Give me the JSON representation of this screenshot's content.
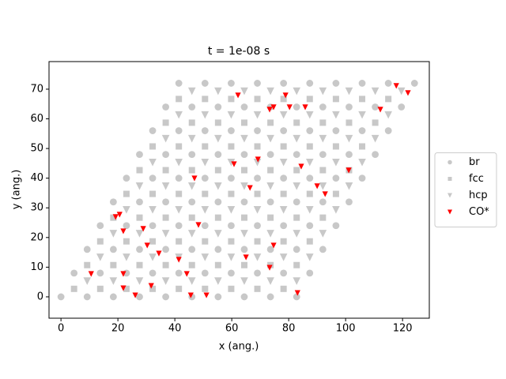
{
  "chart_data": {
    "type": "scatter",
    "title": "t = 1e-08 s",
    "xlabel": "x (ang.)",
    "ylabel": "y (ang.)",
    "xlim": [
      -4.2,
      129.4
    ],
    "ylim": [
      -7.2,
      79.3
    ],
    "xticks": [
      0,
      20,
      40,
      60,
      80,
      100,
      120
    ],
    "yticks": [
      0,
      10,
      20,
      30,
      40,
      50,
      60,
      70
    ],
    "legend": "center right",
    "series": [
      {
        "name": "br",
        "color": "#c8c8c8",
        "marker": "o",
        "x": [
          0,
          9.2,
          18.4,
          27.6,
          36.8,
          46,
          55.2,
          64.4,
          73.6,
          82.8,
          4.6,
          13.8,
          23,
          32.2,
          41.4,
          50.6,
          59.8,
          69,
          78.2,
          87.4,
          9.2,
          18.4,
          27.6,
          36.8,
          46,
          55.2,
          64.4,
          73.6,
          82.8,
          92,
          13.8,
          23,
          32.2,
          41.4,
          50.6,
          59.8,
          69,
          78.2,
          87.4,
          96.6,
          18.4,
          27.6,
          36.8,
          46,
          55.2,
          64.4,
          73.6,
          82.8,
          92,
          101.2,
          23,
          32.2,
          41.4,
          50.6,
          59.8,
          69,
          78.2,
          87.4,
          96.6,
          105.8,
          27.6,
          36.8,
          46,
          55.2,
          64.4,
          73.6,
          82.8,
          92,
          101.2,
          110.4,
          32.2,
          41.4,
          50.6,
          59.8,
          69,
          78.2,
          87.4,
          96.6,
          105.8,
          115,
          36.8,
          46,
          55.2,
          64.4,
          73.6,
          82.8,
          92,
          101.2,
          110.4,
          119.6,
          41.4,
          50.6,
          59.8,
          69,
          78.2,
          87.4,
          96.6,
          105.8,
          115,
          124.2
        ],
        "y": [
          0,
          0,
          0,
          0,
          0,
          0,
          0,
          0,
          0,
          0,
          8,
          8,
          8,
          8,
          8,
          8,
          8,
          8,
          8,
          8,
          16,
          16,
          16,
          16,
          16,
          16,
          16,
          16,
          16,
          16,
          24,
          24,
          24,
          24,
          24,
          24,
          24,
          24,
          24,
          24,
          32,
          32,
          32,
          32,
          32,
          32,
          32,
          32,
          32,
          32,
          40,
          40,
          40,
          40,
          40,
          40,
          40,
          40,
          40,
          40,
          48,
          48,
          48,
          48,
          48,
          48,
          48,
          48,
          48,
          48,
          56,
          56,
          56,
          56,
          56,
          56,
          56,
          56,
          56,
          56,
          64,
          64,
          64,
          64,
          64,
          64,
          64,
          64,
          64,
          64,
          72,
          72,
          72,
          72,
          72,
          72,
          72,
          72,
          72,
          72
        ]
      },
      {
        "name": "fcc",
        "color": "#c8c8c8",
        "marker": "s",
        "x": [
          4.6,
          13.8,
          23,
          32.2,
          41.4,
          50.6,
          59.8,
          69,
          78.2,
          9.2,
          18.4,
          27.6,
          36.8,
          46,
          55.2,
          64.4,
          73.6,
          82.8,
          13.8,
          23,
          32.2,
          41.4,
          50.6,
          59.8,
          69,
          78.2,
          87.4,
          18.4,
          27.6,
          36.8,
          46,
          55.2,
          64.4,
          73.6,
          82.8,
          92,
          23,
          32.2,
          41.4,
          50.6,
          59.8,
          69,
          78.2,
          87.4,
          96.6,
          27.6,
          36.8,
          46,
          55.2,
          64.4,
          73.6,
          82.8,
          92,
          101.2,
          32.2,
          41.4,
          50.6,
          59.8,
          69,
          78.2,
          87.4,
          96.6,
          105.8,
          36.8,
          46,
          55.2,
          64.4,
          73.6,
          82.8,
          92,
          101.2,
          110.4,
          41.4,
          50.6,
          59.8,
          69,
          78.2,
          87.4,
          96.6,
          105.8,
          115
        ],
        "y": [
          2.7,
          2.7,
          2.7,
          2.7,
          2.7,
          2.7,
          2.7,
          2.7,
          2.7,
          10.7,
          10.7,
          10.7,
          10.7,
          10.7,
          10.7,
          10.7,
          10.7,
          10.7,
          18.7,
          18.7,
          18.7,
          18.7,
          18.7,
          18.7,
          18.7,
          18.7,
          18.7,
          26.7,
          26.7,
          26.7,
          26.7,
          26.7,
          26.7,
          26.7,
          26.7,
          26.7,
          34.7,
          34.7,
          34.7,
          34.7,
          34.7,
          34.7,
          34.7,
          34.7,
          34.7,
          42.7,
          42.7,
          42.7,
          42.7,
          42.7,
          42.7,
          42.7,
          42.7,
          42.7,
          50.7,
          50.7,
          50.7,
          50.7,
          50.7,
          50.7,
          50.7,
          50.7,
          50.7,
          58.7,
          58.7,
          58.7,
          58.7,
          58.7,
          58.7,
          58.7,
          58.7,
          58.7,
          66.7,
          66.7,
          66.7,
          66.7,
          66.7,
          66.7,
          66.7,
          66.7,
          66.7
        ]
      },
      {
        "name": "hcp",
        "color": "#c8c8c8",
        "marker": "v",
        "x": [
          9.2,
          18.4,
          27.6,
          36.8,
          46,
          55.2,
          64.4,
          73.6,
          82.8,
          13.8,
          23,
          32.2,
          41.4,
          50.6,
          59.8,
          69,
          78.2,
          87.4,
          18.4,
          27.6,
          36.8,
          46,
          55.2,
          64.4,
          73.6,
          82.8,
          92,
          23,
          32.2,
          41.4,
          50.6,
          59.8,
          69,
          78.2,
          87.4,
          96.6,
          27.6,
          36.8,
          46,
          55.2,
          64.4,
          73.6,
          82.8,
          92,
          101.2,
          32.2,
          41.4,
          50.6,
          59.8,
          69,
          78.2,
          87.4,
          96.6,
          105.8,
          36.8,
          46,
          55.2,
          64.4,
          73.6,
          82.8,
          92,
          101.2,
          110.4,
          41.4,
          50.6,
          59.8,
          69,
          78.2,
          87.4,
          96.6,
          105.8,
          115,
          46,
          55.2,
          64.4,
          73.6,
          82.8,
          92,
          101.2,
          110.4,
          119.6
        ],
        "y": [
          5.3,
          5.3,
          5.3,
          5.3,
          5.3,
          5.3,
          5.3,
          5.3,
          5.3,
          13.3,
          13.3,
          13.3,
          13.3,
          13.3,
          13.3,
          13.3,
          13.3,
          13.3,
          21.3,
          21.3,
          21.3,
          21.3,
          21.3,
          21.3,
          21.3,
          21.3,
          21.3,
          29.3,
          29.3,
          29.3,
          29.3,
          29.3,
          29.3,
          29.3,
          29.3,
          29.3,
          37.3,
          37.3,
          37.3,
          37.3,
          37.3,
          37.3,
          37.3,
          37.3,
          37.3,
          45.3,
          45.3,
          45.3,
          45.3,
          45.3,
          45.3,
          45.3,
          45.3,
          45.3,
          53.3,
          53.3,
          53.3,
          53.3,
          53.3,
          53.3,
          53.3,
          53.3,
          53.3,
          61.3,
          61.3,
          61.3,
          61.3,
          61.3,
          61.3,
          61.3,
          61.3,
          61.3,
          69.3,
          69.3,
          69.3,
          69.3,
          69.3,
          69.3,
          69.3,
          69.3,
          69.3
        ]
      },
      {
        "name": "CO*",
        "color": "#ff0000",
        "marker": "v",
        "x": [
          117.8,
          121.9,
          62.2,
          78.9,
          74.7,
          73.3,
          80.3,
          85.8,
          112.2,
          69.2,
          60.8,
          84.4,
          101.1,
          46.9,
          66.4,
          90,
          92.8,
          20.6,
          19.2,
          48.3,
          28.9,
          21.9,
          30.3,
          74.7,
          34.4,
          65,
          41.4,
          73.3,
          10.6,
          21.9,
          44.2,
          31.7,
          21.9,
          83.1,
          26.1,
          45.6,
          51.1
        ],
        "y": [
          71.1,
          68.7,
          67.9,
          67.9,
          63.9,
          63.1,
          63.9,
          63.9,
          63.1,
          46.3,
          44.7,
          43.9,
          42.6,
          39.9,
          36.7,
          37.3,
          34.6,
          27.7,
          26.9,
          24.2,
          22.9,
          22.1,
          17.3,
          17.3,
          14.6,
          13.3,
          12.5,
          9.8,
          7.7,
          7.7,
          7.7,
          3.7,
          2.9,
          1.3,
          0.5,
          0.5,
          0.5
        ]
      }
    ]
  }
}
